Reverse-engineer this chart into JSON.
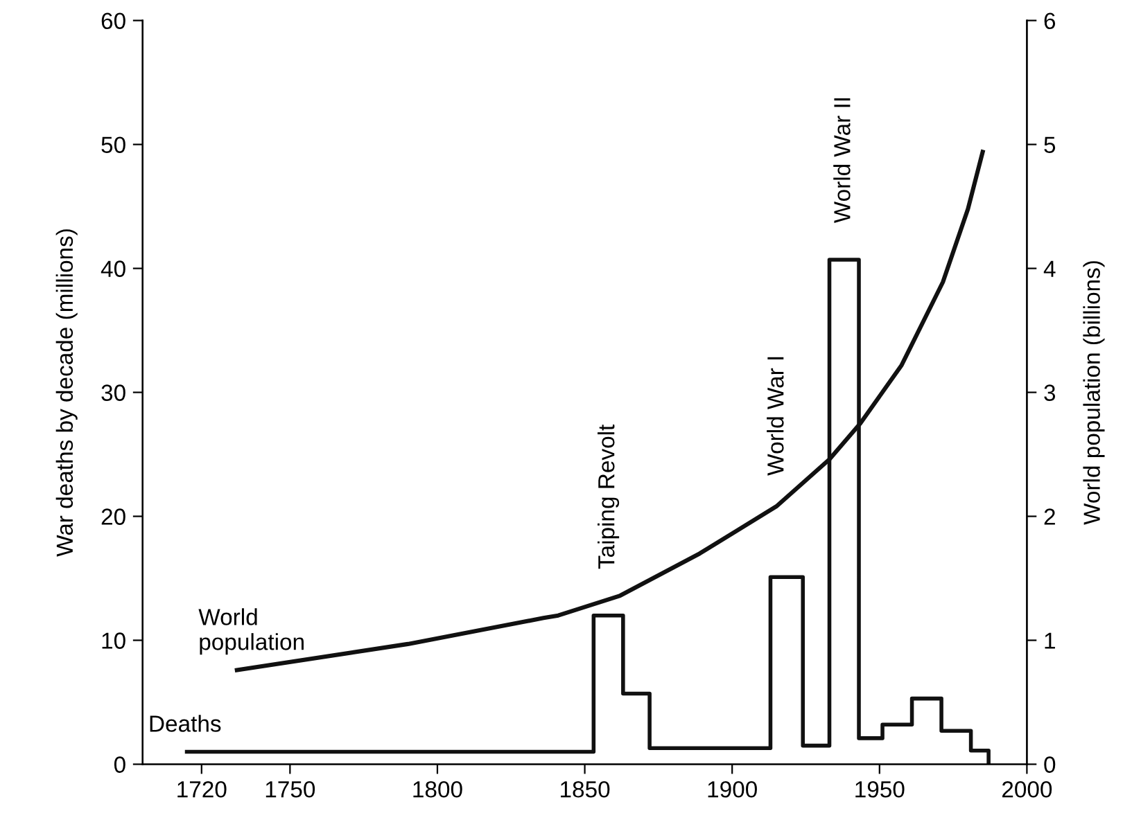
{
  "chart_data": {
    "type": "step",
    "xlabel": null,
    "ylabel": "War deaths by decade (millions)",
    "y2label": "World population (billions)",
    "series": [
      {
        "name": "Deaths",
        "color": "#111111",
        "x": [
          1715,
          1853,
          1863,
          1872,
          1913,
          1924,
          1933,
          1943,
          1951,
          1961,
          1971,
          1981,
          1987
        ],
        "values": [
          1.0,
          12.0,
          5.7,
          1.3,
          15.1,
          1.5,
          40.7,
          2.1,
          3.2,
          5.3,
          2.7,
          1.1,
          0
        ]
      },
      {
        "name": "World\npopulation",
        "type": "line",
        "axis": "y2",
        "color": "#111111",
        "x": [
          1732,
          1790,
          1836,
          1841,
          1862,
          1889,
          1915,
          1933,
          1943.5,
          1957.5,
          1971.5,
          1980,
          1985
        ],
        "values": [
          0.76,
          0.97,
          1.18,
          1.2,
          1.36,
          1.7,
          2.08,
          2.46,
          2.75,
          3.22,
          3.89,
          4.48,
          4.94
        ]
      }
    ],
    "annotations": [
      {
        "text": "Taiping Revolt",
        "x": 1858,
        "y": 12.0
      },
      "World War I",
      {
        "text": "World War II",
        "x": 1938,
        "y": 40.7
      }
    ],
    "xlim": [
      1700,
      2000
    ],
    "xticks": [
      1720,
      1750,
      1800,
      1850,
      1900,
      1950,
      2000
    ],
    "ylim": [
      0,
      60
    ],
    "yticks": [
      0,
      10,
      20,
      30,
      40,
      50,
      60
    ],
    "y2lim": [
      0,
      6
    ],
    "y2ticks": [
      0,
      1,
      2,
      3,
      4,
      5,
      6
    ],
    "grid": false,
    "legend": false
  }
}
